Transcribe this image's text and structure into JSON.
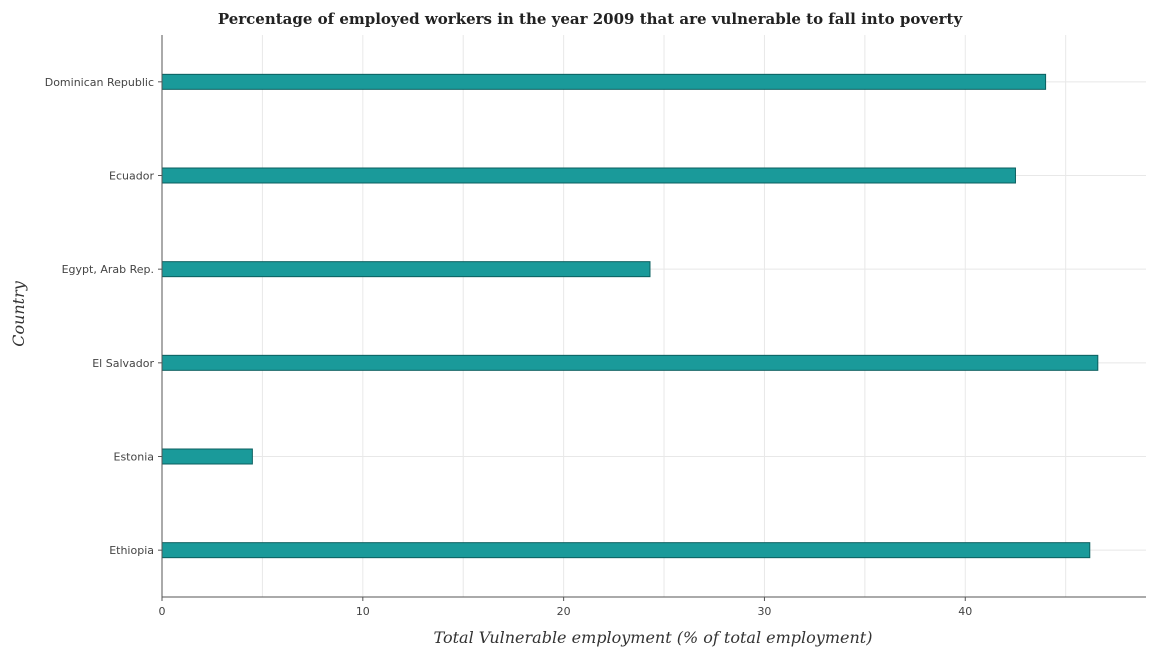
{
  "chart_data": {
    "type": "bar",
    "orientation": "horizontal",
    "title": "Percentage of employed workers in the year 2009 that are vulnerable to fall into poverty",
    "xlabel": "Total Vulnerable employment (% of total employment)",
    "ylabel": "Country",
    "categories": [
      "Dominican Republic",
      "Ecuador",
      "Egypt, Arab Rep.",
      "El Salvador",
      "Estonia",
      "Ethiopia"
    ],
    "values": [
      44.0,
      42.5,
      24.3,
      46.6,
      4.5,
      46.2
    ],
    "xlim": [
      0,
      49
    ],
    "xticks": [
      0,
      10,
      20,
      30,
      40
    ],
    "xtick_labels": [
      "0",
      "10",
      "20",
      "30",
      "40"
    ],
    "grid": true,
    "bar_color": "#1a9a9a",
    "bar_edge_color": "#0b5f5f"
  }
}
